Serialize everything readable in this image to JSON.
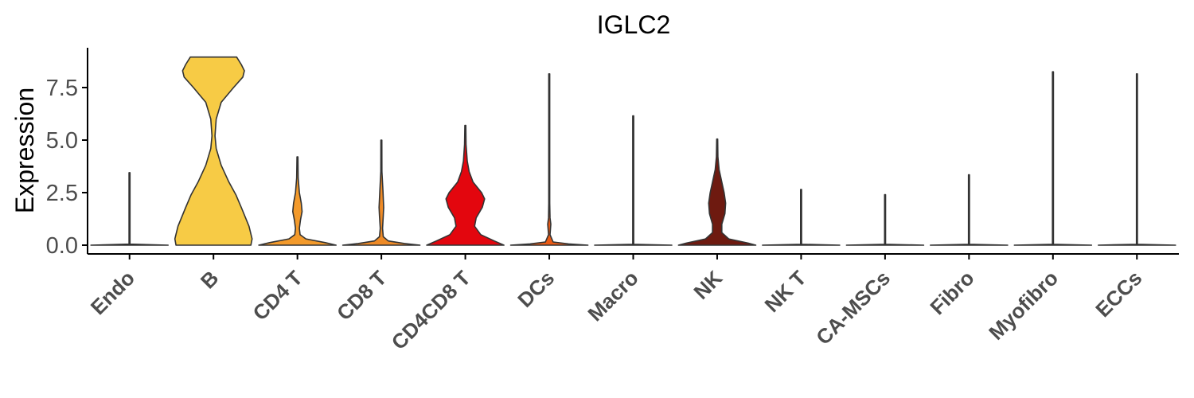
{
  "chart_data": {
    "type": "violin",
    "title": "IGLC2",
    "xlabel": "",
    "ylabel": "Expression",
    "ylim": [
      -0.35,
      9.3
    ],
    "yticks": [
      0.0,
      2.5,
      5.0,
      7.5
    ],
    "ytick_labels": [
      "0.0",
      "2.5",
      "5.0",
      "7.5"
    ],
    "grid": false,
    "legend": "none",
    "categories": [
      "Endo",
      "B",
      "CD4 T",
      "CD8 T",
      "CD4CD8 T",
      "DCs",
      "Macro",
      "NK",
      "NK T",
      "CA-MSCs",
      "Fibro",
      "Myofibro",
      "ECCs"
    ],
    "colors": [
      "#F7B733",
      "#F7CB45",
      "#F39A2B",
      "#EE8A26",
      "#E3060E",
      "#EA5A14",
      "#B8341A",
      "#6E1A10",
      "#6E1A10",
      "#6E1A10",
      "#6E1A10",
      "#6E1A10",
      "#6E1A10"
    ],
    "series": [
      {
        "category": "Endo",
        "max": 3.45,
        "profile": [
          [
            0,
            1.0
          ],
          [
            0.05,
            0.01
          ],
          [
            3.45,
            0.01
          ]
        ]
      },
      {
        "category": "B",
        "max": 8.95,
        "profile": [
          [
            0,
            0.97
          ],
          [
            0.3,
            1.0
          ],
          [
            0.9,
            0.92
          ],
          [
            1.8,
            0.72
          ],
          [
            2.4,
            0.58
          ],
          [
            3.0,
            0.4
          ],
          [
            3.8,
            0.2
          ],
          [
            4.6,
            0.07
          ],
          [
            5.2,
            0.04
          ],
          [
            6.0,
            0.07
          ],
          [
            6.8,
            0.2
          ],
          [
            7.5,
            0.52
          ],
          [
            8.0,
            0.76
          ],
          [
            8.3,
            0.8
          ],
          [
            8.6,
            0.72
          ],
          [
            8.95,
            0.6
          ]
        ]
      },
      {
        "category": "CD4 T",
        "max": 4.2,
        "profile": [
          [
            0,
            1.0
          ],
          [
            0.12,
            0.72
          ],
          [
            0.3,
            0.22
          ],
          [
            0.5,
            0.07
          ],
          [
            0.8,
            0.05
          ],
          [
            1.2,
            0.08
          ],
          [
            1.6,
            0.12
          ],
          [
            2.0,
            0.1
          ],
          [
            2.5,
            0.05
          ],
          [
            3.2,
            0.02
          ],
          [
            4.2,
            0.005
          ]
        ]
      },
      {
        "category": "CD8 T",
        "max": 5.0,
        "profile": [
          [
            0,
            1.0
          ],
          [
            0.08,
            0.6
          ],
          [
            0.2,
            0.18
          ],
          [
            0.4,
            0.05
          ],
          [
            0.8,
            0.03
          ],
          [
            1.4,
            0.05
          ],
          [
            1.8,
            0.06
          ],
          [
            2.6,
            0.04
          ],
          [
            3.5,
            0.015
          ],
          [
            5.0,
            0.005
          ]
        ]
      },
      {
        "category": "CD4CD8 T",
        "max": 5.7,
        "profile": [
          [
            0,
            1.0
          ],
          [
            0.2,
            0.75
          ],
          [
            0.5,
            0.4
          ],
          [
            0.9,
            0.24
          ],
          [
            1.3,
            0.28
          ],
          [
            1.8,
            0.44
          ],
          [
            2.2,
            0.5
          ],
          [
            2.5,
            0.42
          ],
          [
            3.0,
            0.2
          ],
          [
            3.5,
            0.1
          ],
          [
            4.0,
            0.05
          ],
          [
            4.8,
            0.02
          ],
          [
            5.7,
            0.005
          ]
        ]
      },
      {
        "category": "DCs",
        "max": 8.15,
        "profile": [
          [
            0,
            1.0
          ],
          [
            0.06,
            0.5
          ],
          [
            0.15,
            0.1
          ],
          [
            0.5,
            0.02
          ],
          [
            1.0,
            0.04
          ],
          [
            1.3,
            0.02
          ],
          [
            2.0,
            0.01
          ],
          [
            4.0,
            0.006
          ],
          [
            8.15,
            0.005
          ]
        ]
      },
      {
        "category": "Macro",
        "max": 6.15,
        "profile": [
          [
            0,
            1.0
          ],
          [
            0.04,
            0.01
          ],
          [
            6.15,
            0.005
          ]
        ]
      },
      {
        "category": "NK",
        "max": 5.05,
        "profile": [
          [
            0,
            1.0
          ],
          [
            0.1,
            0.8
          ],
          [
            0.3,
            0.3
          ],
          [
            0.6,
            0.12
          ],
          [
            1.0,
            0.12
          ],
          [
            1.5,
            0.2
          ],
          [
            2.0,
            0.22
          ],
          [
            2.5,
            0.18
          ],
          [
            3.0,
            0.12
          ],
          [
            3.6,
            0.05
          ],
          [
            4.2,
            0.02
          ],
          [
            5.05,
            0.005
          ]
        ]
      },
      {
        "category": "NK T",
        "max": 2.65,
        "profile": [
          [
            0,
            1.0
          ],
          [
            0.04,
            0.01
          ],
          [
            2.65,
            0.005
          ]
        ]
      },
      {
        "category": "CA-MSCs",
        "max": 2.4,
        "profile": [
          [
            0,
            1.0
          ],
          [
            0.04,
            0.01
          ],
          [
            2.4,
            0.005
          ]
        ]
      },
      {
        "category": "Fibro",
        "max": 3.35,
        "profile": [
          [
            0,
            1.0
          ],
          [
            0.04,
            0.01
          ],
          [
            3.35,
            0.005
          ]
        ]
      },
      {
        "category": "Myofibro",
        "max": 8.25,
        "profile": [
          [
            0,
            1.0
          ],
          [
            0.04,
            0.01
          ],
          [
            8.25,
            0.005
          ]
        ]
      },
      {
        "category": "ECCs",
        "max": 8.15,
        "profile": [
          [
            0,
            1.0
          ],
          [
            0.04,
            0.01
          ],
          [
            8.15,
            0.005
          ]
        ]
      }
    ]
  }
}
